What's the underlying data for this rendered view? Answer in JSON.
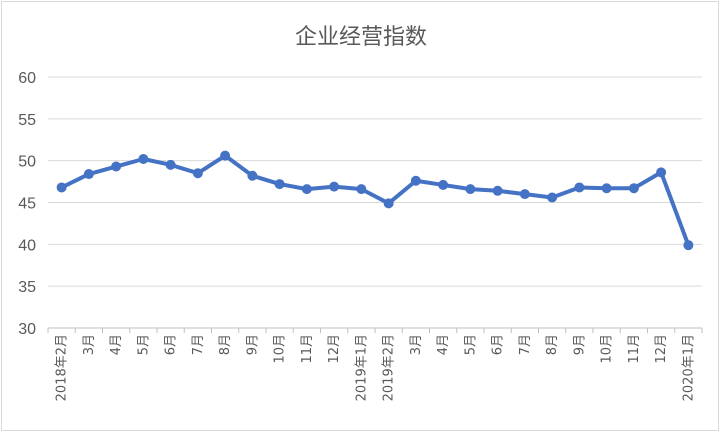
{
  "chart_data": {
    "type": "line",
    "title": "企业经营指数",
    "xlabel": "",
    "ylabel": "",
    "ylim": [
      30,
      60
    ],
    "yticks": [
      30,
      35,
      40,
      45,
      50,
      55,
      60
    ],
    "grid": true,
    "legend": "none",
    "categories": [
      "2018年2月",
      "3月",
      "4月",
      "5月",
      "6月",
      "7月",
      "8月",
      "9月",
      "10月",
      "11月",
      "12月",
      "2019年1月",
      "2019年2月",
      "3月",
      "4月",
      "5月",
      "6月",
      "7月",
      "8月",
      "9月",
      "10月",
      "11月",
      "12月",
      "2020年1月"
    ],
    "series": [
      {
        "color": "#4472c4",
        "values": [
          46.8,
          48.4,
          49.3,
          50.2,
          49.5,
          48.5,
          50.6,
          48.2,
          47.2,
          46.6,
          46.9,
          46.6,
          44.9,
          47.6,
          47.1,
          46.6,
          46.4,
          46.0,
          45.6,
          46.8,
          46.7,
          46.7,
          48.6,
          39.9
        ]
      }
    ]
  }
}
